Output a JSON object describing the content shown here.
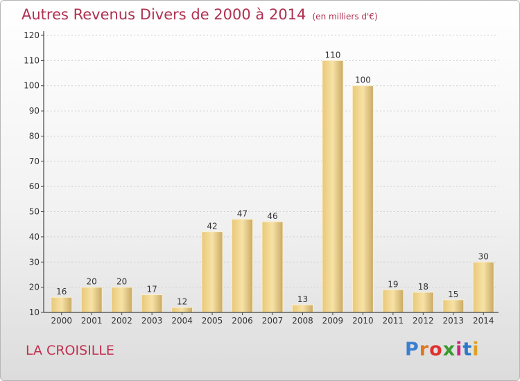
{
  "title": "Autres Revenus Divers de 2000 à 2014",
  "subtitle": "(en milliers d'€)",
  "place": "LA CROISILLE",
  "logo": {
    "text": "Proxiti",
    "colors": [
      "#3a7fd0",
      "#e07820",
      "#e03030",
      "#3a9a30",
      "#d02080",
      "#2a78c8",
      "#e0a020"
    ]
  },
  "colors": {
    "title": "#b03050",
    "bar_light": "#f6dd9c",
    "bar_dark": "#c8a660",
    "axis": "#444444",
    "grid": "#cfcfcf"
  },
  "chart_data": {
    "type": "bar",
    "title": "Autres Revenus Divers de 2000 à 2014",
    "subtitle": "(en milliers d'€)",
    "categories": [
      "2000",
      "2001",
      "2002",
      "2003",
      "2004",
      "2005",
      "2006",
      "2007",
      "2008",
      "2009",
      "2010",
      "2011",
      "2012",
      "2013",
      "2014"
    ],
    "values": [
      16,
      20,
      20,
      17,
      12,
      42,
      47,
      46,
      13,
      110,
      100,
      19,
      18,
      15,
      30
    ],
    "ylim": [
      10,
      120
    ],
    "yticks": [
      10,
      20,
      30,
      40,
      50,
      60,
      70,
      80,
      90,
      100,
      110,
      120
    ],
    "grid": true,
    "legend": "none"
  }
}
